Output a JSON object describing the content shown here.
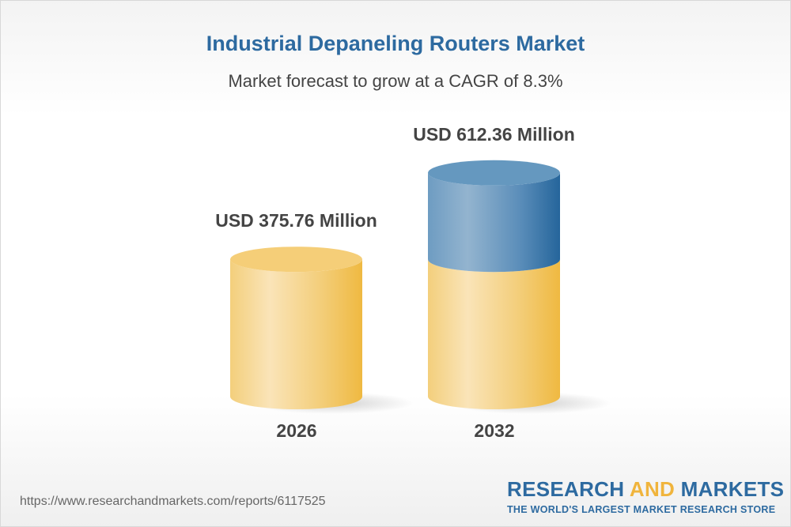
{
  "chart_data": {
    "type": "bar",
    "title": "Industrial Depaneling Routers Market",
    "subtitle": "Market forecast to grow at a CAGR of 8.3%",
    "categories": [
      "2026",
      "2032"
    ],
    "values": [
      375.76,
      612.36
    ],
    "data_labels": [
      "USD 375.76 Million",
      "USD 612.36 Million"
    ],
    "style": "3d-cylinder",
    "colors": {
      "base": "#f0b843",
      "growth": "#2a6a9e",
      "title": "#2d6aa0"
    }
  },
  "footer": {
    "url": "https://www.researchandmarkets.com/reports/6117525",
    "logo_part1": "RESEARCH ",
    "logo_part2": "AND",
    "logo_part3": " MARKETS",
    "tagline": "THE WORLD'S LARGEST MARKET RESEARCH STORE"
  }
}
